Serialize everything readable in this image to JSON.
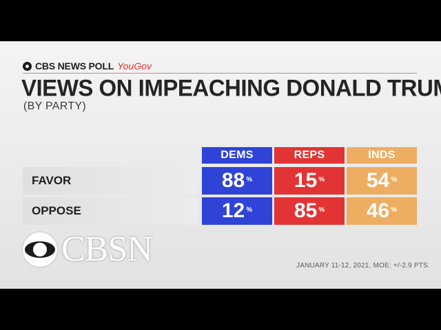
{
  "header": {
    "source_name": "CBS NEWS POLL",
    "source_partner": "YouGov",
    "title": "VIEWS ON IMPEACHING DONALD TRUMP",
    "subtitle": "(BY PARTY)"
  },
  "colors": {
    "dems": "#2f43d6",
    "reps": "#e23434",
    "inds": "#eeae62"
  },
  "chart_data": {
    "type": "table",
    "title": "VIEWS ON IMPEACHING DONALD TRUMP",
    "subtitle": "(BY PARTY)",
    "columns": [
      "DEMS",
      "REPS",
      "INDS"
    ],
    "rows": [
      {
        "label": "FAVOR",
        "values": [
          88,
          15,
          54
        ]
      },
      {
        "label": "OPPOSE",
        "values": [
          12,
          85,
          46
        ]
      }
    ],
    "unit": "%"
  },
  "logo": {
    "text": "CBSN"
  },
  "footnote": "JANUARY 11-12, 2021, MOE: +/-2.9 PTS."
}
